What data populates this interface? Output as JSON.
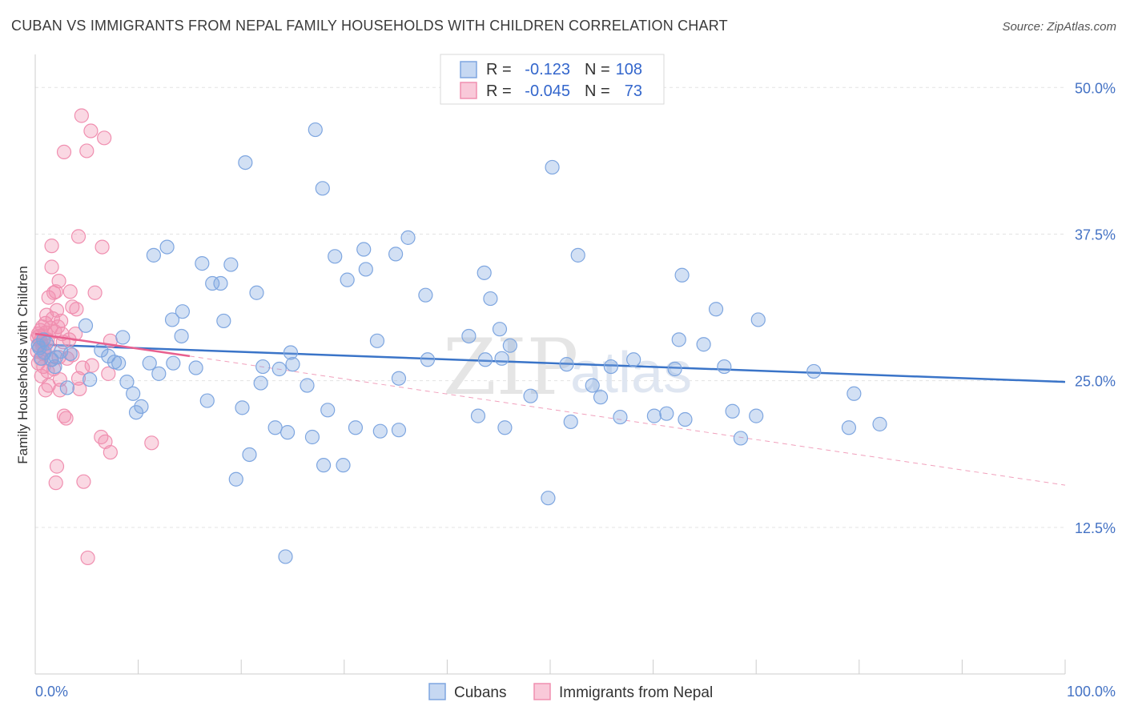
{
  "header": {
    "title": "CUBAN VS IMMIGRANTS FROM NEPAL FAMILY HOUSEHOLDS WITH CHILDREN CORRELATION CHART",
    "source": "Source: ZipAtlas.com"
  },
  "watermark": {
    "zip": "ZIP",
    "atlas": "atlas"
  },
  "legend_box": {
    "rows": [
      {
        "r_label": "R =",
        "r_value": "-0.123",
        "n_label": "N =",
        "n_value": "108"
      },
      {
        "r_label": "R =",
        "r_value": "-0.045",
        "n_label": "N =",
        "n_value": "73"
      }
    ]
  },
  "chart_data": {
    "type": "scatter",
    "title": "CUBAN VS IMMIGRANTS FROM NEPAL FAMILY HOUSEHOLDS WITH CHILDREN CORRELATION CHART",
    "xlabel": "",
    "ylabel": "Family Households with Children",
    "xlim": [
      0,
      100
    ],
    "ylim": [
      0,
      52
    ],
    "x_tick_labels": [
      "0.0%",
      "100.0%"
    ],
    "y_ticks": [
      12.5,
      25.0,
      37.5,
      50.0
    ],
    "y_tick_labels": [
      "12.5%",
      "25.0%",
      "37.5%",
      "50.0%"
    ],
    "grid": true,
    "legend_position": "bottom",
    "colors": {
      "cubans": "#7ea6e0",
      "nepal": "#f08fb0",
      "cubans_line": "#3a74c8",
      "nepal_line": "#e8608f"
    },
    "series": [
      {
        "name": "Cubans",
        "r": -0.123,
        "n": 108,
        "trend": {
          "x": [
            0,
            100
          ],
          "y": [
            28.1,
            24.9
          ]
        },
        "points": [
          [
            27.2,
            46.4
          ],
          [
            20.4,
            43.6
          ],
          [
            50.2,
            43.2
          ],
          [
            27.9,
            41.4
          ],
          [
            36.2,
            37.2
          ],
          [
            12.8,
            36.4
          ],
          [
            31.9,
            36.2
          ],
          [
            11.5,
            35.7
          ],
          [
            35.0,
            35.8
          ],
          [
            29.1,
            35.6
          ],
          [
            16.2,
            35.0
          ],
          [
            19.0,
            34.9
          ],
          [
            32.1,
            34.5
          ],
          [
            52.7,
            35.7
          ],
          [
            43.6,
            34.2
          ],
          [
            62.8,
            34.0
          ],
          [
            17.2,
            33.3
          ],
          [
            18.0,
            33.3
          ],
          [
            30.3,
            33.6
          ],
          [
            21.5,
            32.5
          ],
          [
            37.9,
            32.3
          ],
          [
            44.2,
            32.0
          ],
          [
            66.1,
            31.1
          ],
          [
            14.3,
            30.9
          ],
          [
            13.3,
            30.2
          ],
          [
            18.3,
            30.1
          ],
          [
            70.2,
            30.2
          ],
          [
            4.9,
            29.7
          ],
          [
            45.1,
            29.4
          ],
          [
            14.2,
            28.8
          ],
          [
            42.1,
            28.8
          ],
          [
            8.5,
            28.7
          ],
          [
            0.8,
            28.5
          ],
          [
            33.2,
            28.4
          ],
          [
            46.1,
            28.0
          ],
          [
            62.5,
            28.5
          ],
          [
            64.9,
            28.1
          ],
          [
            0.3,
            28.0
          ],
          [
            6.4,
            27.6
          ],
          [
            2.5,
            27.5
          ],
          [
            24.8,
            27.4
          ],
          [
            0.9,
            27.4
          ],
          [
            3.4,
            27.3
          ],
          [
            7.1,
            27.1
          ],
          [
            1.6,
            26.8
          ],
          [
            0.6,
            26.9
          ],
          [
            38.1,
            26.8
          ],
          [
            43.7,
            26.8
          ],
          [
            45.3,
            26.9
          ],
          [
            58.1,
            26.8
          ],
          [
            7.7,
            26.6
          ],
          [
            8.1,
            26.5
          ],
          [
            11.1,
            26.5
          ],
          [
            13.4,
            26.5
          ],
          [
            25.0,
            26.4
          ],
          [
            51.6,
            26.4
          ],
          [
            55.9,
            26.2
          ],
          [
            66.9,
            26.2
          ],
          [
            22.1,
            26.2
          ],
          [
            23.7,
            26.0
          ],
          [
            15.6,
            26.1
          ],
          [
            62.1,
            26.0
          ],
          [
            75.6,
            25.8
          ],
          [
            1.9,
            26.2
          ],
          [
            12.0,
            25.6
          ],
          [
            35.3,
            25.2
          ],
          [
            5.3,
            25.1
          ],
          [
            3.1,
            24.4
          ],
          [
            8.9,
            24.9
          ],
          [
            21.9,
            24.8
          ],
          [
            26.4,
            24.6
          ],
          [
            54.1,
            24.6
          ],
          [
            9.5,
            23.9
          ],
          [
            79.5,
            23.9
          ],
          [
            48.1,
            23.7
          ],
          [
            54.9,
            23.6
          ],
          [
            16.7,
            23.3
          ],
          [
            20.1,
            22.7
          ],
          [
            10.3,
            22.8
          ],
          [
            9.8,
            22.3
          ],
          [
            28.4,
            22.5
          ],
          [
            61.3,
            22.2
          ],
          [
            67.7,
            22.4
          ],
          [
            60.1,
            22.0
          ],
          [
            43.0,
            22.0
          ],
          [
            52.0,
            21.5
          ],
          [
            56.8,
            21.9
          ],
          [
            63.1,
            21.7
          ],
          [
            70.0,
            22.0
          ],
          [
            23.3,
            21.0
          ],
          [
            31.1,
            21.0
          ],
          [
            33.5,
            20.7
          ],
          [
            35.3,
            20.8
          ],
          [
            45.6,
            21.0
          ],
          [
            79.0,
            21.0
          ],
          [
            82.0,
            21.3
          ],
          [
            24.5,
            20.6
          ],
          [
            26.9,
            20.2
          ],
          [
            68.5,
            20.1
          ],
          [
            20.8,
            18.7
          ],
          [
            28.0,
            17.8
          ],
          [
            29.9,
            17.8
          ],
          [
            19.5,
            16.6
          ],
          [
            49.8,
            15.0
          ],
          [
            24.3,
            10.0
          ],
          [
            0.4,
            27.8
          ],
          [
            1.1,
            28.2
          ],
          [
            2.0,
            27.0
          ]
        ]
      },
      {
        "name": "Immigrants from Nepal",
        "r": -0.045,
        "n": 73,
        "trend": {
          "x": [
            0,
            15
          ],
          "y": [
            29.0,
            27.1
          ]
        },
        "trend_ext": {
          "x": [
            15,
            100
          ],
          "y": [
            27.1,
            16.1
          ]
        },
        "points": [
          [
            4.5,
            47.6
          ],
          [
            5.4,
            46.3
          ],
          [
            6.7,
            45.7
          ],
          [
            5.0,
            44.6
          ],
          [
            2.8,
            44.5
          ],
          [
            4.2,
            37.3
          ],
          [
            6.5,
            36.4
          ],
          [
            1.6,
            36.5
          ],
          [
            1.6,
            34.7
          ],
          [
            2.3,
            33.5
          ],
          [
            1.8,
            32.5
          ],
          [
            2.0,
            32.6
          ],
          [
            5.8,
            32.5
          ],
          [
            1.3,
            32.1
          ],
          [
            3.4,
            32.6
          ],
          [
            3.6,
            31.3
          ],
          [
            4.0,
            31.1
          ],
          [
            2.1,
            31.0
          ],
          [
            1.1,
            30.6
          ],
          [
            1.7,
            30.3
          ],
          [
            2.5,
            30.1
          ],
          [
            1.0,
            29.9
          ],
          [
            0.7,
            29.6
          ],
          [
            2.2,
            29.6
          ],
          [
            0.5,
            29.3
          ],
          [
            0.3,
            29.0
          ],
          [
            1.0,
            29.1
          ],
          [
            1.9,
            29.2
          ],
          [
            2.6,
            29.0
          ],
          [
            3.9,
            29.0
          ],
          [
            0.2,
            28.7
          ],
          [
            0.5,
            28.4
          ],
          [
            1.2,
            28.5
          ],
          [
            3.3,
            28.5
          ],
          [
            7.3,
            28.4
          ],
          [
            0.3,
            28.1
          ],
          [
            0.7,
            28.0
          ],
          [
            1.3,
            27.9
          ],
          [
            0.2,
            27.5
          ],
          [
            0.8,
            27.3
          ],
          [
            2.3,
            27.0
          ],
          [
            0.5,
            26.9
          ],
          [
            1.5,
            26.8
          ],
          [
            3.1,
            26.9
          ],
          [
            0.3,
            26.5
          ],
          [
            0.8,
            26.2
          ],
          [
            5.5,
            26.3
          ],
          [
            1.2,
            25.8
          ],
          [
            4.6,
            26.1
          ],
          [
            7.1,
            25.6
          ],
          [
            0.6,
            25.4
          ],
          [
            2.4,
            25.1
          ],
          [
            4.2,
            25.2
          ],
          [
            1.3,
            24.6
          ],
          [
            1.0,
            24.2
          ],
          [
            2.4,
            24.2
          ],
          [
            4.3,
            24.3
          ],
          [
            2.8,
            22.0
          ],
          [
            3.0,
            21.8
          ],
          [
            6.4,
            20.2
          ],
          [
            6.8,
            19.8
          ],
          [
            11.3,
            19.7
          ],
          [
            7.3,
            18.9
          ],
          [
            2.1,
            17.7
          ],
          [
            2.0,
            16.3
          ],
          [
            4.7,
            16.4
          ],
          [
            5.1,
            9.9
          ],
          [
            0.4,
            28.8
          ],
          [
            1.5,
            29.5
          ],
          [
            2.7,
            28.3
          ],
          [
            0.9,
            27.7
          ],
          [
            3.6,
            27.2
          ],
          [
            1.8,
            26.0
          ]
        ]
      }
    ]
  },
  "bottom_legend": {
    "items": [
      {
        "label": "Cubans"
      },
      {
        "label": "Immigrants from Nepal"
      }
    ]
  }
}
